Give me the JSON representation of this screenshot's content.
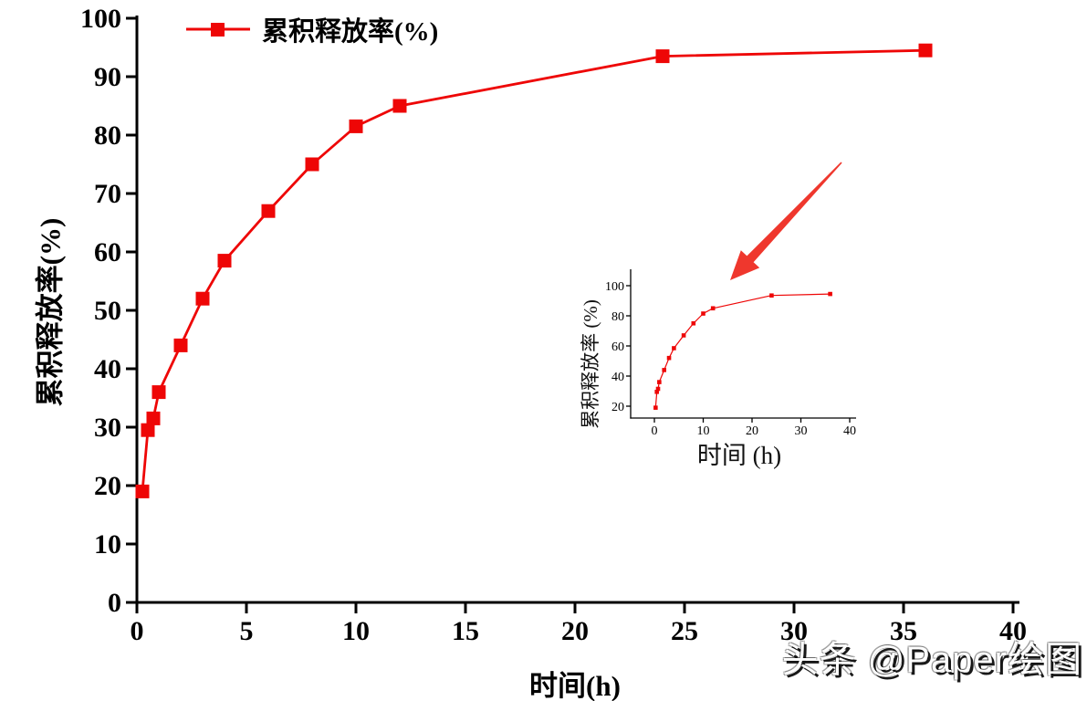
{
  "watermark": {
    "text": "头条 @Paper绘图"
  },
  "colors": {
    "series": "#ee0606",
    "axis": "#000000",
    "text": "#000000",
    "arrow": "#ef372d",
    "background": "#ffffff"
  },
  "chart_data": [
    {
      "id": "main",
      "type": "line",
      "title": "",
      "xlabel": "时间(h)",
      "ylabel": "累积释放率(%)",
      "xlim": [
        0,
        40
      ],
      "ylim": [
        0,
        100
      ],
      "xticks": [
        0,
        5,
        10,
        15,
        20,
        25,
        30,
        35,
        40
      ],
      "yticks": [
        0,
        10,
        20,
        30,
        40,
        50,
        60,
        70,
        80,
        90,
        100
      ],
      "grid": false,
      "legend_position": "top-left-inside",
      "series": [
        {
          "name": "累积释放率(%)",
          "marker": "square",
          "x": [
            0.25,
            0.5,
            0.75,
            1,
            2,
            3,
            4,
            6,
            8,
            10,
            12,
            24,
            36
          ],
          "y": [
            19,
            29.5,
            31.5,
            36,
            44,
            52,
            58.5,
            67,
            75,
            81.5,
            85,
            93.5,
            94.5
          ]
        }
      ]
    },
    {
      "id": "inset",
      "type": "line",
      "title": "",
      "xlabel": "时间 (h)",
      "ylabel": "累积释放率 (%)",
      "xlim": [
        0,
        40
      ],
      "ylim": [
        20,
        100
      ],
      "xticks": [
        0,
        10,
        20,
        30,
        40
      ],
      "yticks": [
        20,
        40,
        60,
        80,
        100
      ],
      "grid": false,
      "legend_position": "none",
      "series": [
        {
          "name": "累积释放率(%)",
          "marker": "square",
          "x": [
            0.25,
            0.5,
            0.75,
            1,
            2,
            3,
            4,
            6,
            8,
            10,
            12,
            24,
            36
          ],
          "y": [
            19,
            29.5,
            31.5,
            36,
            44,
            52,
            58.5,
            67,
            75,
            81.5,
            85,
            93.5,
            94.5
          ]
        }
      ]
    }
  ]
}
